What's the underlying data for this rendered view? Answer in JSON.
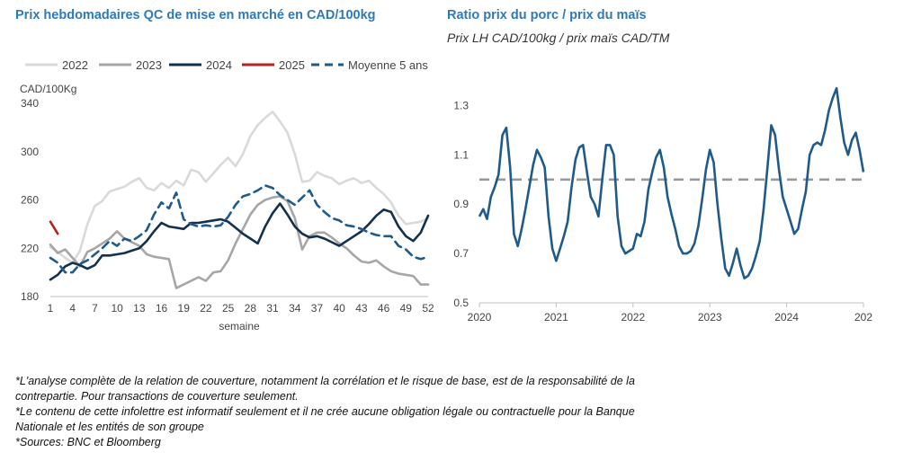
{
  "left_chart": {
    "title": "Prix hebdomadaires QC de mise en marché en CAD/100kg",
    "unit_label": "CAD/100Kg",
    "legend": [
      "2022",
      "2023",
      "2024",
      "2025",
      "Moyenne 5 ans"
    ]
  },
  "right_chart": {
    "title": "Ratio prix du porc / prix du maïs",
    "subtitle": "Prix LH CAD/100kg / prix maïs CAD/TM"
  },
  "footnotes": [
    "*L'analyse complète de la relation de couverture, notamment la corrélation et le risque de base, est de la responsabilité de la",
    "contrepartie. Pour transactions de couverture seulement.",
    "*Le contenu de cette infolettre est informatif seulement et il ne crée aucune obligation légale ou contractuelle pour la Banque",
    "Nationale et les entités de son groupe",
    "*Sources: BNC et Bloomberg"
  ],
  "chart_data": [
    {
      "type": "line",
      "xlabel": "semaine",
      "ylabel": "CAD/100Kg",
      "xlim": [
        1,
        52
      ],
      "ylim": [
        180,
        340
      ],
      "xticks": [
        "1",
        "4",
        "7",
        "10",
        "13",
        "16",
        "19",
        "22",
        "25",
        "28",
        "31",
        "34",
        "37",
        "40",
        "43",
        "46",
        "49",
        "52"
      ],
      "yticks": [
        "180",
        "220",
        "260",
        "300",
        "340"
      ],
      "x": [
        1,
        2,
        3,
        4,
        5,
        6,
        7,
        8,
        9,
        10,
        11,
        12,
        13,
        14,
        15,
        16,
        17,
        18,
        19,
        20,
        21,
        22,
        23,
        24,
        25,
        26,
        27,
        28,
        29,
        30,
        31,
        32,
        33,
        34,
        35,
        36,
        37,
        38,
        39,
        40,
        41,
        42,
        43,
        44,
        45,
        46,
        47,
        48,
        49,
        50,
        51,
        52
      ],
      "series": [
        {
          "name": "2022",
          "color": "#d9d9d9",
          "style": "solid",
          "values": [
            221,
            217,
            212,
            208,
            218,
            240,
            255,
            259,
            267,
            269,
            271,
            275,
            278,
            270,
            268,
            274,
            270,
            276,
            272,
            285,
            283,
            275,
            282,
            289,
            295,
            288,
            298,
            313,
            322,
            328,
            333,
            325,
            316,
            298,
            275,
            276,
            283,
            280,
            278,
            273,
            276,
            278,
            274,
            276,
            270,
            265,
            258,
            247,
            240,
            241,
            242,
            245
          ]
        },
        {
          "name": "2023",
          "color": "#a6a6a6",
          "style": "solid",
          "values": [
            223,
            216,
            219,
            212,
            205,
            217,
            220,
            224,
            228,
            234,
            228,
            225,
            222,
            215,
            213,
            212,
            211,
            187,
            190,
            193,
            196,
            193,
            200,
            201,
            210,
            224,
            236,
            248,
            256,
            260,
            262,
            263,
            259,
            245,
            219,
            230,
            233,
            233,
            229,
            224,
            220,
            214,
            209,
            208,
            210,
            205,
            201,
            199,
            198,
            197,
            190,
            190
          ]
        },
        {
          "name": "2024",
          "color": "#13304d",
          "style": "solid",
          "values": [
            194,
            198,
            205,
            208,
            206,
            203,
            206,
            214,
            214,
            215,
            216,
            218,
            220,
            226,
            234,
            241,
            238,
            237,
            236,
            241,
            241,
            242,
            243,
            244,
            242,
            237,
            232,
            228,
            224,
            238,
            249,
            257,
            248,
            238,
            232,
            229,
            230,
            228,
            225,
            222,
            226,
            230,
            234,
            240,
            247,
            252,
            250,
            238,
            230,
            226,
            233,
            247
          ]
        },
        {
          "name": "2025",
          "color": "#b22222",
          "style": "solid",
          "values": [
            242,
            232,
            null,
            null,
            null,
            null,
            null,
            null,
            null,
            null,
            null,
            null,
            null,
            null,
            null,
            null,
            null,
            null,
            null,
            null,
            null,
            null,
            null,
            null,
            null,
            null,
            null,
            null,
            null,
            null,
            null,
            null,
            null,
            null,
            null,
            null,
            null,
            null,
            null,
            null,
            null,
            null,
            null,
            null,
            null,
            null,
            null,
            null,
            null,
            null,
            null,
            null
          ]
        },
        {
          "name": "Moyenne 5 ans",
          "color": "#1f5a8a",
          "style": "dashed",
          "values": [
            212,
            208,
            200,
            200,
            207,
            210,
            215,
            220,
            226,
            222,
            228,
            226,
            230,
            235,
            248,
            258,
            253,
            266,
            244,
            240,
            238,
            239,
            238,
            239,
            246,
            256,
            263,
            265,
            268,
            272,
            270,
            264,
            260,
            256,
            262,
            268,
            256,
            250,
            245,
            243,
            239,
            238,
            236,
            233,
            231,
            230,
            230,
            222,
            219,
            213,
            211,
            213
          ]
        }
      ]
    },
    {
      "type": "line",
      "xlabel": "",
      "ylabel": "",
      "ylim": [
        0.5,
        1.4
      ],
      "yticks": [
        "0.5",
        "0.7",
        "0.9",
        "1.1",
        "1.3"
      ],
      "xticks": [
        "2020",
        "2021",
        "2022",
        "2023",
        "2024",
        "202"
      ],
      "xlim": [
        2020.0,
        2025.0
      ],
      "reference_line": {
        "y": 1.0,
        "style": "dashed",
        "color": "#999999"
      },
      "series": [
        {
          "name": "",
          "color": "#1f5a8a",
          "x": [
            2020.0,
            2020.05,
            2020.1,
            2020.15,
            2020.2,
            2020.25,
            2020.3,
            2020.35,
            2020.4,
            2020.45,
            2020.5,
            2020.55,
            2020.6,
            2020.65,
            2020.7,
            2020.75,
            2020.8,
            2020.85,
            2020.9,
            2020.95,
            2021.0,
            2021.05,
            2021.1,
            2021.15,
            2021.2,
            2021.25,
            2021.3,
            2021.35,
            2021.4,
            2021.45,
            2021.5,
            2021.55,
            2021.6,
            2021.65,
            2021.7,
            2021.75,
            2021.8,
            2021.85,
            2021.9,
            2021.95,
            2022.0,
            2022.05,
            2022.1,
            2022.15,
            2022.2,
            2022.25,
            2022.3,
            2022.35,
            2022.4,
            2022.45,
            2022.5,
            2022.55,
            2022.6,
            2022.65,
            2022.7,
            2022.75,
            2022.8,
            2022.85,
            2022.9,
            2022.95,
            2023.0,
            2023.05,
            2023.1,
            2023.15,
            2023.2,
            2023.25,
            2023.3,
            2023.35,
            2023.4,
            2023.45,
            2023.5,
            2023.55,
            2023.6,
            2023.65,
            2023.7,
            2023.75,
            2023.8,
            2023.85,
            2023.9,
            2023.95,
            2024.0,
            2024.05,
            2024.1,
            2024.15,
            2024.2,
            2024.25,
            2024.3,
            2024.35,
            2024.4,
            2024.45,
            2024.5,
            2024.55,
            2024.6,
            2024.65,
            2024.7,
            2024.75,
            2024.8,
            2024.85,
            2024.9,
            2024.95,
            2025.0
          ],
          "values": [
            0.85,
            0.88,
            0.84,
            0.93,
            0.97,
            1.02,
            1.18,
            1.21,
            1.05,
            0.78,
            0.73,
            0.8,
            0.88,
            0.97,
            1.06,
            1.12,
            1.09,
            1.05,
            0.85,
            0.72,
            0.67,
            0.72,
            0.77,
            0.83,
            0.97,
            1.08,
            1.13,
            1.14,
            1.03,
            0.93,
            0.9,
            0.85,
            1.0,
            1.14,
            1.14,
            1.1,
            0.85,
            0.73,
            0.7,
            0.71,
            0.72,
            0.78,
            0.77,
            0.83,
            0.96,
            1.03,
            1.09,
            1.12,
            1.05,
            0.93,
            0.86,
            0.8,
            0.73,
            0.7,
            0.7,
            0.71,
            0.74,
            0.81,
            0.92,
            1.04,
            1.12,
            1.07,
            0.9,
            0.76,
            0.64,
            0.61,
            0.66,
            0.72,
            0.65,
            0.6,
            0.61,
            0.64,
            0.69,
            0.75,
            0.88,
            1.05,
            1.22,
            1.18,
            1.04,
            0.93,
            0.88,
            0.83,
            0.78,
            0.8,
            0.88,
            0.95,
            1.1,
            1.14,
            1.15,
            1.14,
            1.2,
            1.28,
            1.33,
            1.37,
            1.25,
            1.15,
            1.1,
            1.16,
            1.19,
            1.12,
            1.03
          ]
        }
      ]
    }
  ]
}
